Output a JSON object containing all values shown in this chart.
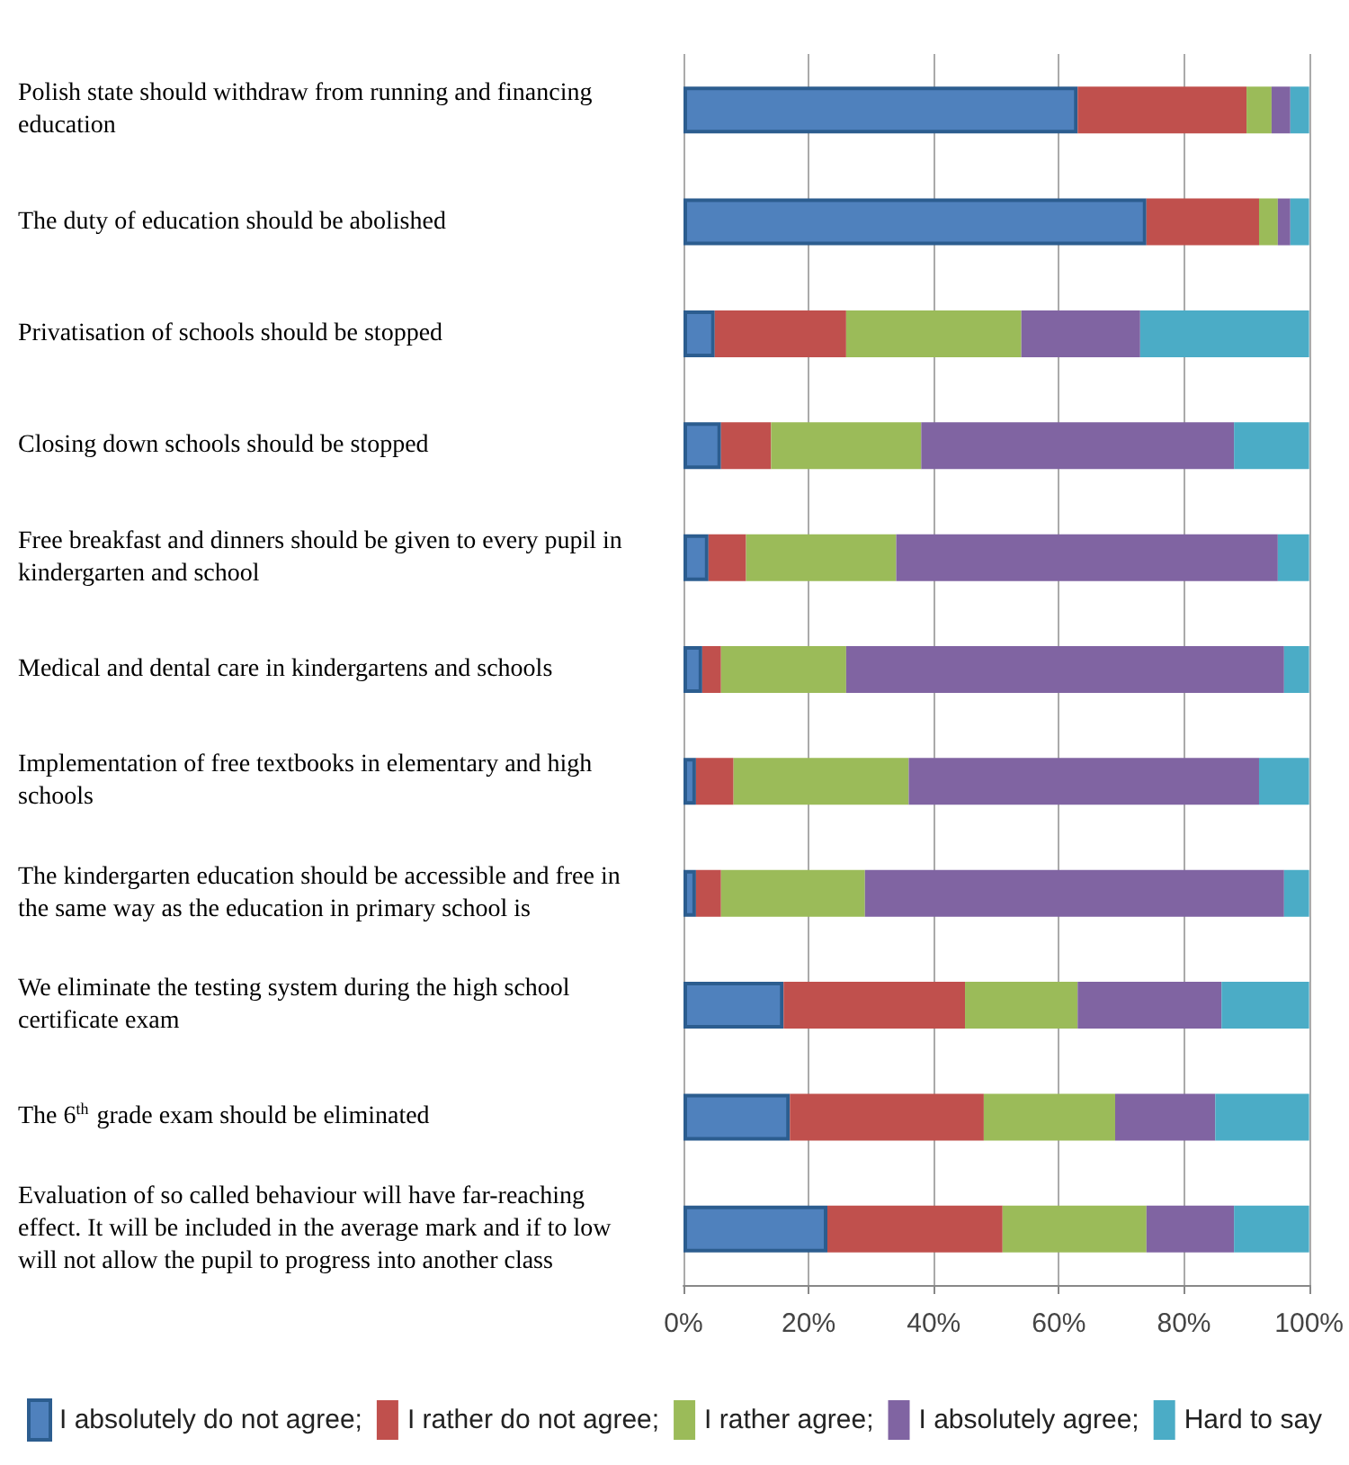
{
  "chart_data": {
    "type": "bar",
    "orientation": "horizontal",
    "stacked": true,
    "categories": [
      "Polish state should withdraw from running and financing education",
      "The duty of education should be abolished",
      "Privatisation of schools should be stopped",
      "Closing down schools should be stopped",
      "Free breakfast and dinners should be given to every pupil in kindergarten and school",
      "Medical and dental care in kindergartens and schools",
      "Implementation of free textbooks in elementary and high schools",
      "The kindergarten education should be accessible and free in the same way as the education in primary school is",
      "We eliminate the testing system during the high school certificate exam",
      "The 6$^{th}$ grade exam should be eliminated",
      "Evaluation of so called behaviour will have far-reaching effect. It will be included in the average mark and if to low will not allow the pupil to progress into another class"
    ],
    "series": [
      {
        "name": "I absolutely do not agree;",
        "color": "#4f81bd",
        "values": [
          63,
          74,
          5,
          6,
          4,
          3,
          2,
          2,
          16,
          17,
          23
        ]
      },
      {
        "name": "I rather do not agree;",
        "color": "#c0504d",
        "values": [
          27,
          18,
          21,
          8,
          6,
          3,
          6,
          4,
          29,
          31,
          28
        ]
      },
      {
        "name": "I rather agree;",
        "color": "#9bbb59",
        "values": [
          4,
          3,
          28,
          24,
          24,
          20,
          28,
          23,
          18,
          21,
          23
        ]
      },
      {
        "name": "I absolutely agree;",
        "color": "#8064a2",
        "values": [
          3,
          2,
          19,
          50,
          61,
          70,
          56,
          67,
          23,
          16,
          14
        ]
      },
      {
        "name": "Hard to say",
        "color": "#4bacc6",
        "values": [
          3,
          3,
          27,
          12,
          5,
          4,
          8,
          4,
          14,
          15,
          12
        ]
      }
    ],
    "xlim": [
      0,
      100
    ],
    "xticks": [
      {
        "value": 0,
        "label": "0%"
      },
      {
        "value": 20,
        "label": "20%"
      },
      {
        "value": 40,
        "label": "40%"
      },
      {
        "value": 60,
        "label": "60%"
      },
      {
        "value": 80,
        "label": "80%"
      },
      {
        "value": 100,
        "label": "100%"
      }
    ],
    "grid": "x",
    "legend": "bottom"
  }
}
